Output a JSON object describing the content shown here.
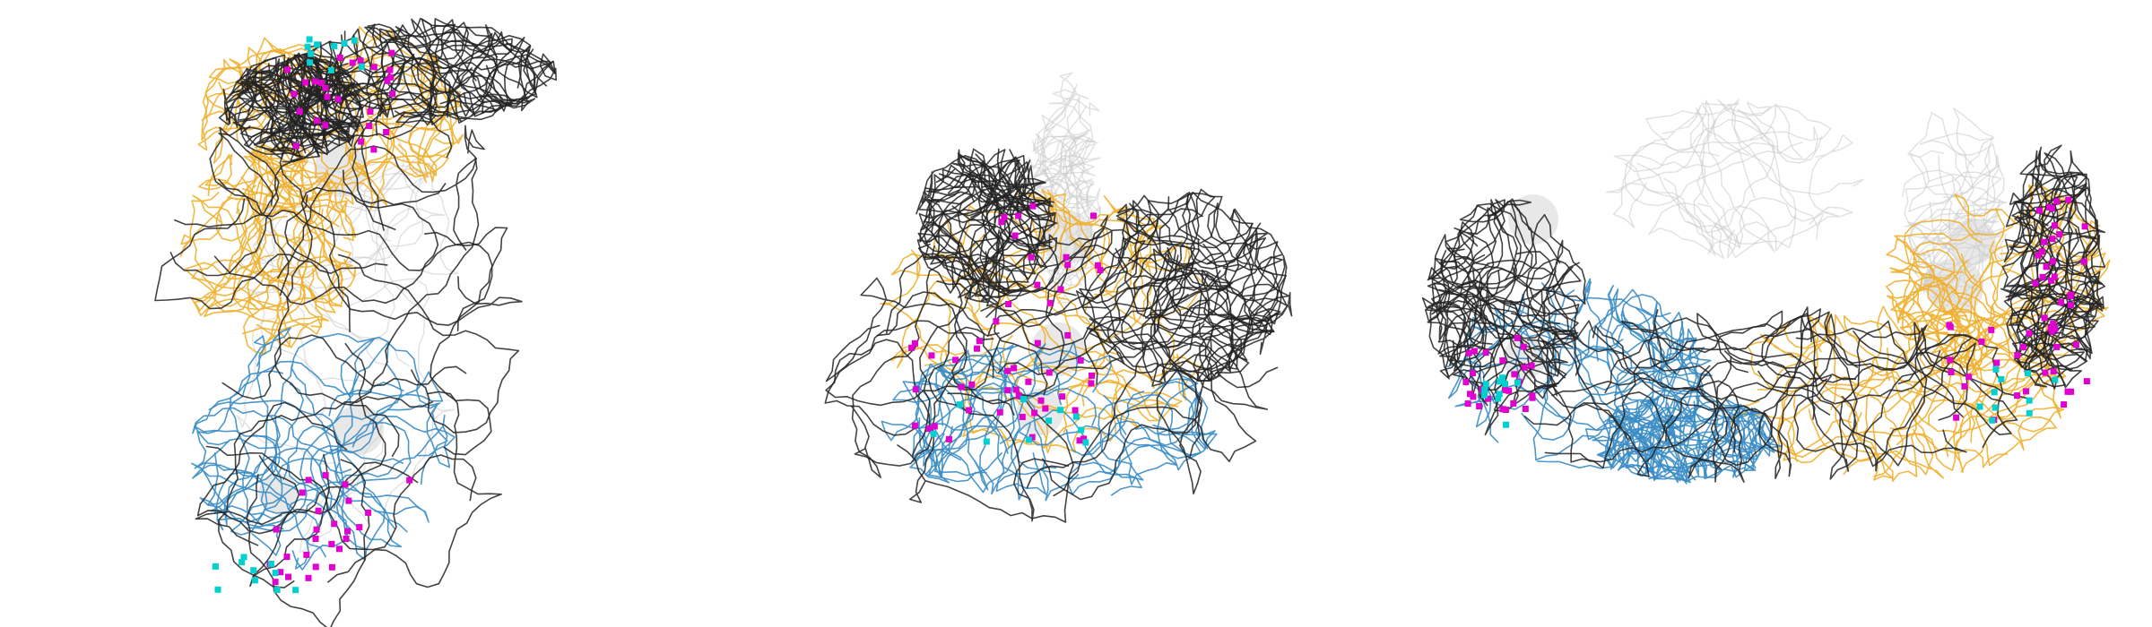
{
  "figure": {
    "panel_count": 3,
    "colors": {
      "background": "#ffffff",
      "neuron_black": "#222222",
      "neuron_orange": "#f0b030",
      "neuron_blue": "#3a8cc4",
      "context_gray": "#c8c8c8",
      "soma_gray": "#d2d2d2",
      "synapse_magenta": "#e000d0",
      "synapse_cyan": "#00d0d0"
    },
    "legend": "none",
    "axes": "none",
    "text_labels": []
  },
  "panels": [
    {
      "view": "first"
    },
    {
      "view": "second"
    },
    {
      "view": "third"
    }
  ]
}
